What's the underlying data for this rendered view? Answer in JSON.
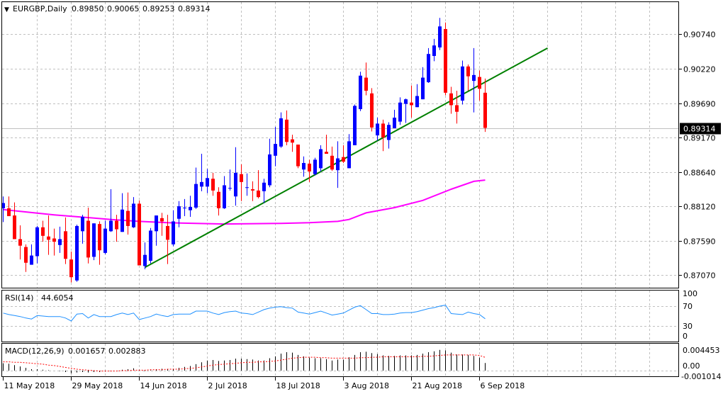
{
  "header": {
    "arrow": "▼",
    "symbol": "EURGBP,Daily",
    "open": "0.89850",
    "high": "0.90065",
    "low": "0.89253",
    "close": "0.89314"
  },
  "current_price_label": "0.89314",
  "colors": {
    "bull": "#0000FF",
    "bear": "#FF0000",
    "ma": "#FF00FF",
    "trendline": "#008000",
    "rsi": "#1E90FF",
    "signal": "#FF0000",
    "histogram": "#000000",
    "grid": "#C0C0C0"
  },
  "chart_data": [
    {
      "type": "candlestick",
      "title": "EURGBP,Daily",
      "ylim": [
        0.8688,
        0.9123
      ],
      "price_axis_labels": [
        "0.90740",
        "0.90220",
        "0.89690",
        "0.89170",
        "0.88640",
        "0.88120",
        "0.87590",
        "0.87070"
      ],
      "price_axis_values": [
        0.9074,
        0.9022,
        0.8969,
        0.8917,
        0.8864,
        0.8812,
        0.8759,
        0.8707
      ],
      "x_labels": [
        {
          "candle": 1,
          "label": "11 May 2018"
        },
        {
          "candle": 13,
          "label": "29 May 2018"
        },
        {
          "candle": 25,
          "label": "14 Jun 2018"
        },
        {
          "candle": 37,
          "label": "2 Jul 2018"
        },
        {
          "candle": 49,
          "label": "18 Jul 2018"
        },
        {
          "candle": 61,
          "label": "3 Aug 2018"
        },
        {
          "candle": 73,
          "label": "21 Aug 2018"
        },
        {
          "candle": 85,
          "label": "6 Sep 2018"
        }
      ],
      "ohlc": [
        [
          0.8809,
          0.8827,
          0.8788,
          0.8817
        ],
        [
          0.8809,
          0.8827,
          0.8797,
          0.8797
        ],
        [
          0.8798,
          0.8818,
          0.8762,
          0.8762
        ],
        [
          0.8762,
          0.8783,
          0.8731,
          0.8752
        ],
        [
          0.875,
          0.8754,
          0.8712,
          0.8726
        ],
        [
          0.8723,
          0.8754,
          0.8723,
          0.8737
        ],
        [
          0.8736,
          0.8782,
          0.8725,
          0.878
        ],
        [
          0.878,
          0.879,
          0.8758,
          0.8767
        ],
        [
          0.8766,
          0.8798,
          0.8738,
          0.8761
        ],
        [
          0.8763,
          0.8778,
          0.8737,
          0.8758
        ],
        [
          0.8753,
          0.8781,
          0.8741,
          0.8762
        ],
        [
          0.8774,
          0.8795,
          0.8724,
          0.8732
        ],
        [
          0.8731,
          0.8743,
          0.8696,
          0.8704
        ],
        [
          0.8699,
          0.8784,
          0.8697,
          0.8782
        ],
        [
          0.8774,
          0.8799,
          0.8755,
          0.8796
        ],
        [
          0.879,
          0.881,
          0.8725,
          0.8734
        ],
        [
          0.8735,
          0.8786,
          0.873,
          0.8786
        ],
        [
          0.8785,
          0.8789,
          0.8723,
          0.8745
        ],
        [
          0.8741,
          0.879,
          0.8739,
          0.8778
        ],
        [
          0.8774,
          0.8838,
          0.8773,
          0.879
        ],
        [
          0.879,
          0.8799,
          0.8758,
          0.8777
        ],
        [
          0.8773,
          0.8832,
          0.8773,
          0.8807
        ],
        [
          0.8805,
          0.8833,
          0.8769,
          0.8782
        ],
        [
          0.878,
          0.8826,
          0.8779,
          0.8816
        ],
        [
          0.8816,
          0.8821,
          0.8722,
          0.8722
        ],
        [
          0.8721,
          0.8757,
          0.8716,
          0.8738
        ],
        [
          0.8729,
          0.8779,
          0.8725,
          0.8775
        ],
        [
          0.8774,
          0.8798,
          0.8752,
          0.8798
        ],
        [
          0.8794,
          0.8802,
          0.8767,
          0.8789
        ],
        [
          0.8782,
          0.8799,
          0.8724,
          0.8761
        ],
        [
          0.8754,
          0.8806,
          0.8751,
          0.8789
        ],
        [
          0.8793,
          0.882,
          0.878,
          0.8812
        ],
        [
          0.881,
          0.8823,
          0.8797,
          0.881
        ],
        [
          0.8806,
          0.8828,
          0.8796,
          0.8811
        ],
        [
          0.881,
          0.8871,
          0.8808,
          0.8846
        ],
        [
          0.8842,
          0.8892,
          0.8835,
          0.8849
        ],
        [
          0.8842,
          0.8869,
          0.8832,
          0.8855
        ],
        [
          0.8854,
          0.8863,
          0.8828,
          0.8836
        ],
        [
          0.8834,
          0.8841,
          0.8798,
          0.8809
        ],
        [
          0.8809,
          0.8858,
          0.8808,
          0.8844
        ],
        [
          0.884,
          0.8868,
          0.8836,
          0.884
        ],
        [
          0.8827,
          0.8902,
          0.8813,
          0.8863
        ],
        [
          0.8861,
          0.8876,
          0.882,
          0.8849
        ],
        [
          0.884,
          0.8862,
          0.8828,
          0.8841
        ],
        [
          0.8838,
          0.885,
          0.882,
          0.8836
        ],
        [
          0.8836,
          0.8867,
          0.8824,
          0.8826
        ],
        [
          0.8835,
          0.8854,
          0.8817,
          0.8848
        ],
        [
          0.8844,
          0.8915,
          0.8841,
          0.8891
        ],
        [
          0.8889,
          0.8933,
          0.8873,
          0.8907
        ],
        [
          0.8903,
          0.8955,
          0.8901,
          0.8946
        ],
        [
          0.8944,
          0.8958,
          0.8905,
          0.891
        ],
        [
          0.8914,
          0.8921,
          0.8895,
          0.8909
        ],
        [
          0.8906,
          0.8906,
          0.887,
          0.8873
        ],
        [
          0.8868,
          0.8888,
          0.8857,
          0.8878
        ],
        [
          0.8877,
          0.8883,
          0.8849,
          0.8865
        ],
        [
          0.8861,
          0.8886,
          0.8859,
          0.8883
        ],
        [
          0.887,
          0.8905,
          0.8865,
          0.8899
        ],
        [
          0.8895,
          0.8921,
          0.8892,
          0.8892
        ],
        [
          0.8889,
          0.8903,
          0.8866,
          0.8868
        ],
        [
          0.8867,
          0.8911,
          0.884,
          0.8885
        ],
        [
          0.8887,
          0.8905,
          0.8878,
          0.888
        ],
        [
          0.887,
          0.8922,
          0.887,
          0.8911
        ],
        [
          0.8905,
          0.8967,
          0.8905,
          0.8965
        ],
        [
          0.896,
          0.9017,
          0.8957,
          0.9011
        ],
        [
          0.9008,
          0.9031,
          0.8981,
          0.8988
        ],
        [
          0.8984,
          0.8992,
          0.8926,
          0.8932
        ],
        [
          0.892,
          0.8947,
          0.8912,
          0.8938
        ],
        [
          0.8938,
          0.8944,
          0.8896,
          0.8917
        ],
        [
          0.8913,
          0.894,
          0.89,
          0.8936
        ],
        [
          0.8931,
          0.8959,
          0.8931,
          0.8947
        ],
        [
          0.8941,
          0.8978,
          0.8936,
          0.897
        ],
        [
          0.8968,
          0.8976,
          0.8939,
          0.8975
        ],
        [
          0.897,
          0.8996,
          0.8947,
          0.8966
        ],
        [
          0.8963,
          0.8998,
          0.8963,
          0.898
        ],
        [
          0.8975,
          0.9024,
          0.8975,
          0.9008
        ],
        [
          0.9001,
          0.9053,
          0.9,
          0.9044
        ],
        [
          0.9041,
          0.9067,
          0.9033,
          0.9057
        ],
        [
          0.9054,
          0.9099,
          0.905,
          0.9086
        ],
        [
          0.9082,
          0.9092,
          0.8981,
          0.8985
        ],
        [
          0.8984,
          0.8994,
          0.8953,
          0.8966
        ],
        [
          0.8966,
          0.8988,
          0.8938,
          0.8956
        ],
        [
          0.8973,
          0.9034,
          0.8967,
          0.9025
        ],
        [
          0.9025,
          0.9028,
          0.8988,
          0.901
        ],
        [
          0.9003,
          0.9053,
          0.8955,
          0.9012
        ],
        [
          0.9009,
          0.9019,
          0.8973,
          0.8991
        ],
        [
          0.8985,
          0.90065,
          0.89253,
          0.89314
        ]
      ],
      "moving_average": [
        [
          1,
          0.8807
        ],
        [
          10,
          0.8799
        ],
        [
          20,
          0.8792
        ],
        [
          25,
          0.8789
        ],
        [
          30,
          0.8787
        ],
        [
          40,
          0.8785
        ],
        [
          50,
          0.8786
        ],
        [
          55,
          0.8787
        ],
        [
          60,
          0.8789
        ],
        [
          62,
          0.8792
        ],
        [
          65,
          0.8802
        ],
        [
          70,
          0.881
        ],
        [
          75,
          0.8821
        ],
        [
          80,
          0.8838
        ],
        [
          84,
          0.885
        ],
        [
          86,
          0.8852
        ]
      ],
      "trendline": {
        "from": {
          "candle": 26,
          "price": 0.8719
        },
        "to": {
          "candle": 97,
          "price": 0.9053
        }
      },
      "current_price": 0.89314
    },
    {
      "type": "line",
      "title": "RSI(14)",
      "value_label": "44.6054",
      "label": "RSI(14)",
      "ylim": [
        0,
        100
      ],
      "levels": [
        70,
        30
      ],
      "axis_labels": [
        "100",
        "70",
        "30",
        "0"
      ],
      "axis_values": [
        100,
        70,
        30,
        0
      ],
      "values": [
        56,
        53,
        51,
        49,
        46,
        44,
        51,
        50,
        49,
        49,
        49,
        46,
        40,
        54,
        55,
        46,
        53,
        49,
        49,
        49,
        53,
        56,
        53,
        56,
        43,
        46,
        49,
        54,
        51,
        49,
        53,
        54,
        54,
        54,
        60,
        60,
        60,
        56,
        53,
        57,
        59,
        60,
        56,
        55,
        53,
        58,
        63,
        66,
        68,
        69,
        67,
        66,
        58,
        56,
        54,
        57,
        60,
        56,
        52,
        54,
        56,
        62,
        68,
        71,
        63,
        55,
        55,
        53,
        53,
        54,
        56,
        57,
        57,
        59,
        62,
        65,
        67,
        70,
        72,
        55,
        54,
        53,
        58,
        55,
        53,
        44.6054
      ]
    },
    {
      "type": "bar",
      "title": "MACD(12,26,9)",
      "label": "MACD(12,26,9)",
      "main_label": "0.001657",
      "signal_label": "0.002883",
      "ylim": [
        -0.0012,
        0.0058
      ],
      "axis_labels": [
        "0.004453",
        "0.00",
        "-0.001014"
      ],
      "axis_values": [
        0.004453,
        0,
        -0.001014
      ],
      "histogram": [
        0.0016,
        0.0015,
        0.0012,
        0.0009,
        0.0006,
        0.0003,
        0.0003,
        0.0002,
        0.0001,
        0.0,
        -0.0001,
        -0.0003,
        -0.0006,
        -0.0004,
        -0.0003,
        -0.0004,
        -0.0003,
        -0.0003,
        -0.0002,
        -0.0001,
        0.0,
        0.0002,
        0.0003,
        0.0005,
        0.0002,
        -0.0001,
        0.0001,
        0.0003,
        0.0004,
        0.0003,
        0.0004,
        0.0006,
        0.0008,
        0.001,
        0.0014,
        0.0018,
        0.0022,
        0.0023,
        0.0021,
        0.0022,
        0.0023,
        0.0026,
        0.0026,
        0.0025,
        0.0024,
        0.0022,
        0.0022,
        0.0027,
        0.0031,
        0.0037,
        0.004,
        0.0039,
        0.0034,
        0.0031,
        0.0028,
        0.0027,
        0.0027,
        0.0025,
        0.0022,
        0.0024,
        0.0024,
        0.0029,
        0.0034,
        0.004,
        0.0041,
        0.0038,
        0.0036,
        0.0033,
        0.0032,
        0.0032,
        0.0033,
        0.0033,
        0.0033,
        0.0034,
        0.0037,
        0.004,
        0.0042,
        0.0045,
        0.0044,
        0.0039,
        0.0035,
        0.0035,
        0.0034,
        0.0032,
        0.0028,
        0.001657
      ],
      "signal": [
        0.0019,
        0.0019,
        0.0018,
        0.0018,
        0.0017,
        0.0016,
        0.0015,
        0.0014,
        0.0012,
        0.0011,
        0.0009,
        0.0007,
        0.0005,
        0.0003,
        0.0002,
        0.0001,
        0.0,
        -0.0001,
        -0.0001,
        -0.0001,
        -0.0001,
        0.0,
        0.0,
        0.0001,
        0.0001,
        0.0001,
        0.0002,
        0.0002,
        0.0002,
        0.0003,
        0.0003,
        0.0003,
        0.0004,
        0.0005,
        0.0006,
        0.0008,
        0.001,
        0.0012,
        0.0013,
        0.0014,
        0.0015,
        0.0016,
        0.0017,
        0.0018,
        0.0018,
        0.0019,
        0.0019,
        0.002,
        0.0021,
        0.0023,
        0.0025,
        0.0027,
        0.0028,
        0.0029,
        0.0029,
        0.0029,
        0.0028,
        0.0028,
        0.0027,
        0.0027,
        0.0027,
        0.0027,
        0.0027,
        0.0028,
        0.0028,
        0.0029,
        0.0029,
        0.003,
        0.003,
        0.003,
        0.003,
        0.003,
        0.003,
        0.003,
        0.0031,
        0.0031,
        0.0032,
        0.0033,
        0.0034,
        0.0034,
        0.0034,
        0.0034,
        0.0034,
        0.0034,
        0.0033,
        0.002883
      ]
    }
  ]
}
